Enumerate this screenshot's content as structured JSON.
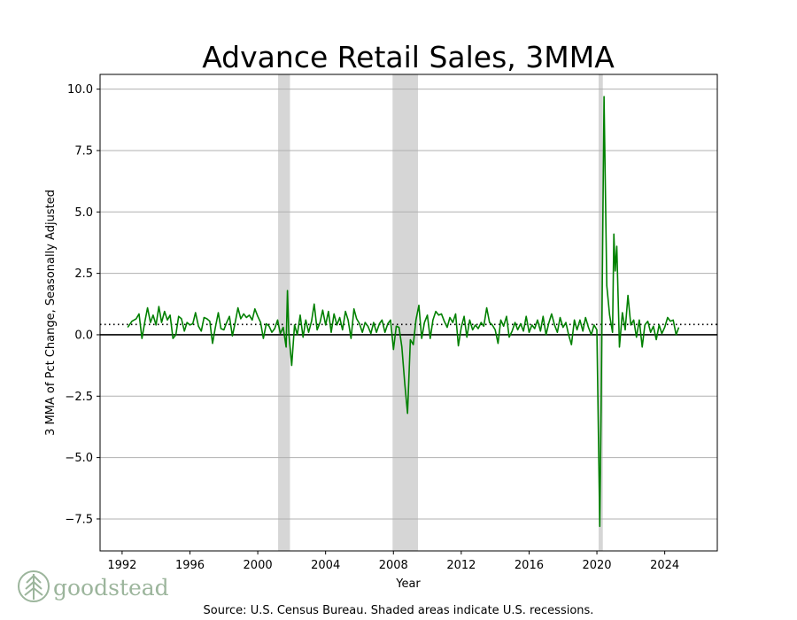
{
  "chart_data": {
    "type": "line",
    "title": "Advance Retail Sales, 3MMA",
    "xlabel": "Year",
    "ylabel": "3 MMA of Pct Change, Seasonally Adjusted",
    "xlim": [
      1990.7,
      2027.1
    ],
    "ylim": [
      -8.8,
      10.6
    ],
    "x_ticks": [
      1992,
      1996,
      2000,
      2004,
      2008,
      2012,
      2016,
      2020,
      2024
    ],
    "y_ticks": [
      10.0,
      7.5,
      5.0,
      2.5,
      0.0,
      -2.5,
      -5.0,
      -7.5
    ],
    "y_tick_labels": [
      "10.0",
      "7.5",
      "5.0",
      "2.5",
      "0.0",
      "−2.5",
      "−5.0",
      "−7.5"
    ],
    "grid": "horizontal",
    "reference_lines": {
      "zero": 0.0,
      "average": 0.42
    },
    "recessions": [
      {
        "start": 2001.2,
        "end": 2001.9
      },
      {
        "start": 2007.95,
        "end": 2009.45
      },
      {
        "start": 2020.1,
        "end": 2020.35
      }
    ],
    "series": [
      {
        "name": "Advance Retail Sales 3MMA",
        "color": "#008000",
        "points": [
          [
            1992.33,
            0.3
          ],
          [
            1992.58,
            0.55
          ],
          [
            1992.83,
            0.65
          ],
          [
            1993.0,
            0.85
          ],
          [
            1993.17,
            -0.15
          ],
          [
            1993.33,
            0.5
          ],
          [
            1993.5,
            1.1
          ],
          [
            1993.67,
            0.5
          ],
          [
            1993.83,
            0.8
          ],
          [
            1994.0,
            0.4
          ],
          [
            1994.17,
            1.15
          ],
          [
            1994.33,
            0.5
          ],
          [
            1994.5,
            0.95
          ],
          [
            1994.67,
            0.6
          ],
          [
            1994.83,
            0.8
          ],
          [
            1995.0,
            -0.15
          ],
          [
            1995.17,
            0.0
          ],
          [
            1995.33,
            0.75
          ],
          [
            1995.5,
            0.65
          ],
          [
            1995.67,
            0.15
          ],
          [
            1995.83,
            0.5
          ],
          [
            1996.0,
            0.4
          ],
          [
            1996.17,
            0.45
          ],
          [
            1996.33,
            0.9
          ],
          [
            1996.5,
            0.35
          ],
          [
            1996.67,
            0.15
          ],
          [
            1996.83,
            0.7
          ],
          [
            1997.0,
            0.65
          ],
          [
            1997.17,
            0.55
          ],
          [
            1997.33,
            -0.35
          ],
          [
            1997.5,
            0.3
          ],
          [
            1997.67,
            0.9
          ],
          [
            1997.83,
            0.25
          ],
          [
            1998.0,
            0.2
          ],
          [
            1998.17,
            0.5
          ],
          [
            1998.33,
            0.75
          ],
          [
            1998.5,
            -0.05
          ],
          [
            1998.67,
            0.5
          ],
          [
            1998.83,
            1.1
          ],
          [
            1999.0,
            0.65
          ],
          [
            1999.17,
            0.85
          ],
          [
            1999.33,
            0.7
          ],
          [
            1999.5,
            0.8
          ],
          [
            1999.67,
            0.6
          ],
          [
            1999.83,
            1.05
          ],
          [
            2000.0,
            0.75
          ],
          [
            2000.17,
            0.5
          ],
          [
            2000.33,
            -0.15
          ],
          [
            2000.5,
            0.45
          ],
          [
            2000.67,
            0.35
          ],
          [
            2000.83,
            0.1
          ],
          [
            2001.0,
            0.25
          ],
          [
            2001.17,
            0.6
          ],
          [
            2001.33,
            0.05
          ],
          [
            2001.5,
            0.3
          ],
          [
            2001.67,
            -0.5
          ],
          [
            2001.75,
            1.8
          ],
          [
            2001.83,
            0.1
          ],
          [
            2002.0,
            -1.25
          ],
          [
            2002.17,
            0.4
          ],
          [
            2002.33,
            0.0
          ],
          [
            2002.5,
            0.8
          ],
          [
            2002.67,
            -0.1
          ],
          [
            2002.83,
            0.6
          ],
          [
            2003.0,
            0.1
          ],
          [
            2003.17,
            0.55
          ],
          [
            2003.33,
            1.25
          ],
          [
            2003.5,
            0.2
          ],
          [
            2003.67,
            0.5
          ],
          [
            2003.83,
            1.0
          ],
          [
            2004.0,
            0.4
          ],
          [
            2004.17,
            0.95
          ],
          [
            2004.33,
            0.1
          ],
          [
            2004.5,
            0.85
          ],
          [
            2004.67,
            0.4
          ],
          [
            2004.83,
            0.7
          ],
          [
            2005.0,
            0.2
          ],
          [
            2005.17,
            0.95
          ],
          [
            2005.33,
            0.6
          ],
          [
            2005.5,
            -0.15
          ],
          [
            2005.67,
            1.05
          ],
          [
            2005.83,
            0.65
          ],
          [
            2006.0,
            0.45
          ],
          [
            2006.17,
            0.1
          ],
          [
            2006.33,
            0.5
          ],
          [
            2006.5,
            0.35
          ],
          [
            2006.67,
            0.05
          ],
          [
            2006.83,
            0.5
          ],
          [
            2007.0,
            0.1
          ],
          [
            2007.17,
            0.45
          ],
          [
            2007.33,
            0.6
          ],
          [
            2007.5,
            0.1
          ],
          [
            2007.67,
            0.45
          ],
          [
            2007.83,
            0.6
          ],
          [
            2008.0,
            -0.6
          ],
          [
            2008.17,
            0.35
          ],
          [
            2008.33,
            0.3
          ],
          [
            2008.5,
            -0.5
          ],
          [
            2008.67,
            -2.0
          ],
          [
            2008.83,
            -3.2
          ],
          [
            2009.0,
            -0.2
          ],
          [
            2009.17,
            -0.4
          ],
          [
            2009.33,
            0.6
          ],
          [
            2009.5,
            1.2
          ],
          [
            2009.67,
            -0.15
          ],
          [
            2009.83,
            0.5
          ],
          [
            2010.0,
            0.8
          ],
          [
            2010.17,
            -0.15
          ],
          [
            2010.33,
            0.6
          ],
          [
            2010.5,
            0.95
          ],
          [
            2010.67,
            0.8
          ],
          [
            2010.83,
            0.85
          ],
          [
            2011.0,
            0.55
          ],
          [
            2011.17,
            0.3
          ],
          [
            2011.33,
            0.7
          ],
          [
            2011.5,
            0.5
          ],
          [
            2011.67,
            0.85
          ],
          [
            2011.83,
            -0.45
          ],
          [
            2012.0,
            0.3
          ],
          [
            2012.17,
            0.75
          ],
          [
            2012.33,
            -0.1
          ],
          [
            2012.5,
            0.6
          ],
          [
            2012.67,
            0.2
          ],
          [
            2012.83,
            0.4
          ],
          [
            2013.0,
            0.25
          ],
          [
            2013.17,
            0.5
          ],
          [
            2013.33,
            0.35
          ],
          [
            2013.5,
            1.1
          ],
          [
            2013.67,
            0.5
          ],
          [
            2013.83,
            0.4
          ],
          [
            2014.0,
            0.2
          ],
          [
            2014.17,
            -0.35
          ],
          [
            2014.33,
            0.6
          ],
          [
            2014.5,
            0.35
          ],
          [
            2014.67,
            0.75
          ],
          [
            2014.83,
            -0.1
          ],
          [
            2015.0,
            0.15
          ],
          [
            2015.17,
            0.5
          ],
          [
            2015.33,
            0.2
          ],
          [
            2015.5,
            0.45
          ],
          [
            2015.67,
            0.15
          ],
          [
            2015.83,
            0.75
          ],
          [
            2016.0,
            0.1
          ],
          [
            2016.17,
            0.4
          ],
          [
            2016.33,
            0.25
          ],
          [
            2016.5,
            0.6
          ],
          [
            2016.67,
            0.15
          ],
          [
            2016.83,
            0.75
          ],
          [
            2017.0,
            0.0
          ],
          [
            2017.17,
            0.5
          ],
          [
            2017.33,
            0.85
          ],
          [
            2017.5,
            0.4
          ],
          [
            2017.67,
            0.1
          ],
          [
            2017.83,
            0.7
          ],
          [
            2018.0,
            0.3
          ],
          [
            2018.17,
            0.5
          ],
          [
            2018.33,
            0.0
          ],
          [
            2018.5,
            -0.4
          ],
          [
            2018.67,
            0.6
          ],
          [
            2018.83,
            0.2
          ],
          [
            2019.0,
            0.6
          ],
          [
            2019.17,
            0.15
          ],
          [
            2019.33,
            0.7
          ],
          [
            2019.5,
            0.3
          ],
          [
            2019.67,
            0.0
          ],
          [
            2019.83,
            0.4
          ],
          [
            2020.0,
            0.2
          ],
          [
            2020.17,
            -7.8
          ],
          [
            2020.25,
            -3.0
          ],
          [
            2020.42,
            9.7
          ],
          [
            2020.58,
            2.0
          ],
          [
            2020.75,
            0.8
          ],
          [
            2020.92,
            0.1
          ],
          [
            2021.0,
            4.1
          ],
          [
            2021.08,
            2.6
          ],
          [
            2021.17,
            3.6
          ],
          [
            2021.33,
            -0.5
          ],
          [
            2021.5,
            0.9
          ],
          [
            2021.67,
            0.2
          ],
          [
            2021.83,
            1.6
          ],
          [
            2022.0,
            0.4
          ],
          [
            2022.17,
            0.6
          ],
          [
            2022.33,
            -0.1
          ],
          [
            2022.5,
            0.6
          ],
          [
            2022.67,
            -0.5
          ],
          [
            2022.83,
            0.4
          ],
          [
            2023.0,
            0.55
          ],
          [
            2023.17,
            0.1
          ],
          [
            2023.33,
            0.35
          ],
          [
            2023.5,
            -0.2
          ],
          [
            2023.67,
            0.4
          ],
          [
            2023.83,
            0.05
          ],
          [
            2024.0,
            0.3
          ],
          [
            2024.17,
            0.7
          ],
          [
            2024.33,
            0.55
          ],
          [
            2024.5,
            0.6
          ],
          [
            2024.67,
            0.0
          ],
          [
            2024.83,
            0.3
          ]
        ]
      }
    ],
    "source": "Source:  U.S. Census Bureau. Shaded areas indicate U.S. recessions."
  },
  "logo": {
    "text": "goodstead",
    "color": "#9cb59c"
  },
  "colors": {
    "line": "#008000",
    "recession": "#d6d6d6",
    "grid": "#b0b0b0"
  }
}
